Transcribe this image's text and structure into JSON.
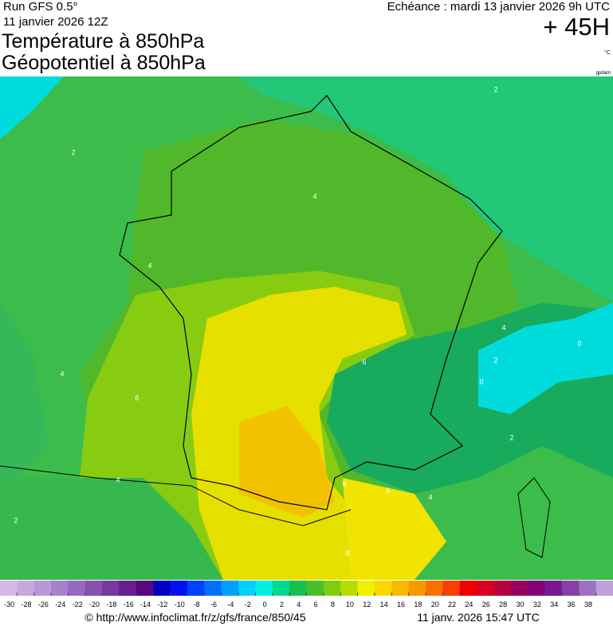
{
  "header": {
    "run": "Run GFS 0.5°",
    "run_date": "11 janvier 2026 12Z",
    "title_1": "Température à 850hPa",
    "title_2": "Géopotentiel à 850hPa",
    "valid_time": "Echéance : mardi 13 janvier 2026 9h UTC",
    "lead_time": "+ 45H",
    "unit": "°C",
    "credit": "gpdam"
  },
  "map": {
    "contour_labels": [
      2,
      2,
      4,
      4,
      4,
      6,
      8,
      6,
      4,
      2,
      0,
      2,
      4,
      6,
      2,
      4,
      8,
      0
    ]
  },
  "colorbar": {
    "ticks": [
      -30,
      -28,
      -26,
      -24,
      -22,
      -20,
      -18,
      -16,
      -14,
      -12,
      -10,
      -8,
      -6,
      -4,
      -2,
      0,
      2,
      4,
      6,
      8,
      10,
      12,
      14,
      16,
      18,
      20,
      22,
      24,
      26,
      28,
      30,
      32,
      34,
      36,
      38
    ],
    "colors": [
      "#d8b8e8",
      "#c8a8e0",
      "#b898d8",
      "#a880cc",
      "#9868c0",
      "#8850b0",
      "#7838a0",
      "#682090",
      "#580880",
      "#0000c0",
      "#0010f0",
      "#0040ff",
      "#0070ff",
      "#00a0ff",
      "#00d0ff",
      "#00f0e0",
      "#00d890",
      "#18c050",
      "#48c028",
      "#80cc10",
      "#b8dc00",
      "#f0f000",
      "#f8d800",
      "#f8b800",
      "#f89800",
      "#f87000",
      "#f84000",
      "#f00000",
      "#d80020",
      "#b80040",
      "#980060",
      "#800078",
      "#781890",
      "#8840a8",
      "#a070c0",
      "#c0a0d8"
    ]
  },
  "footer": {
    "url": "© http://www.infoclimat.fr/z/gfs/france/850/45",
    "timestamp": "11 janv. 2026 15:47 UTC"
  }
}
